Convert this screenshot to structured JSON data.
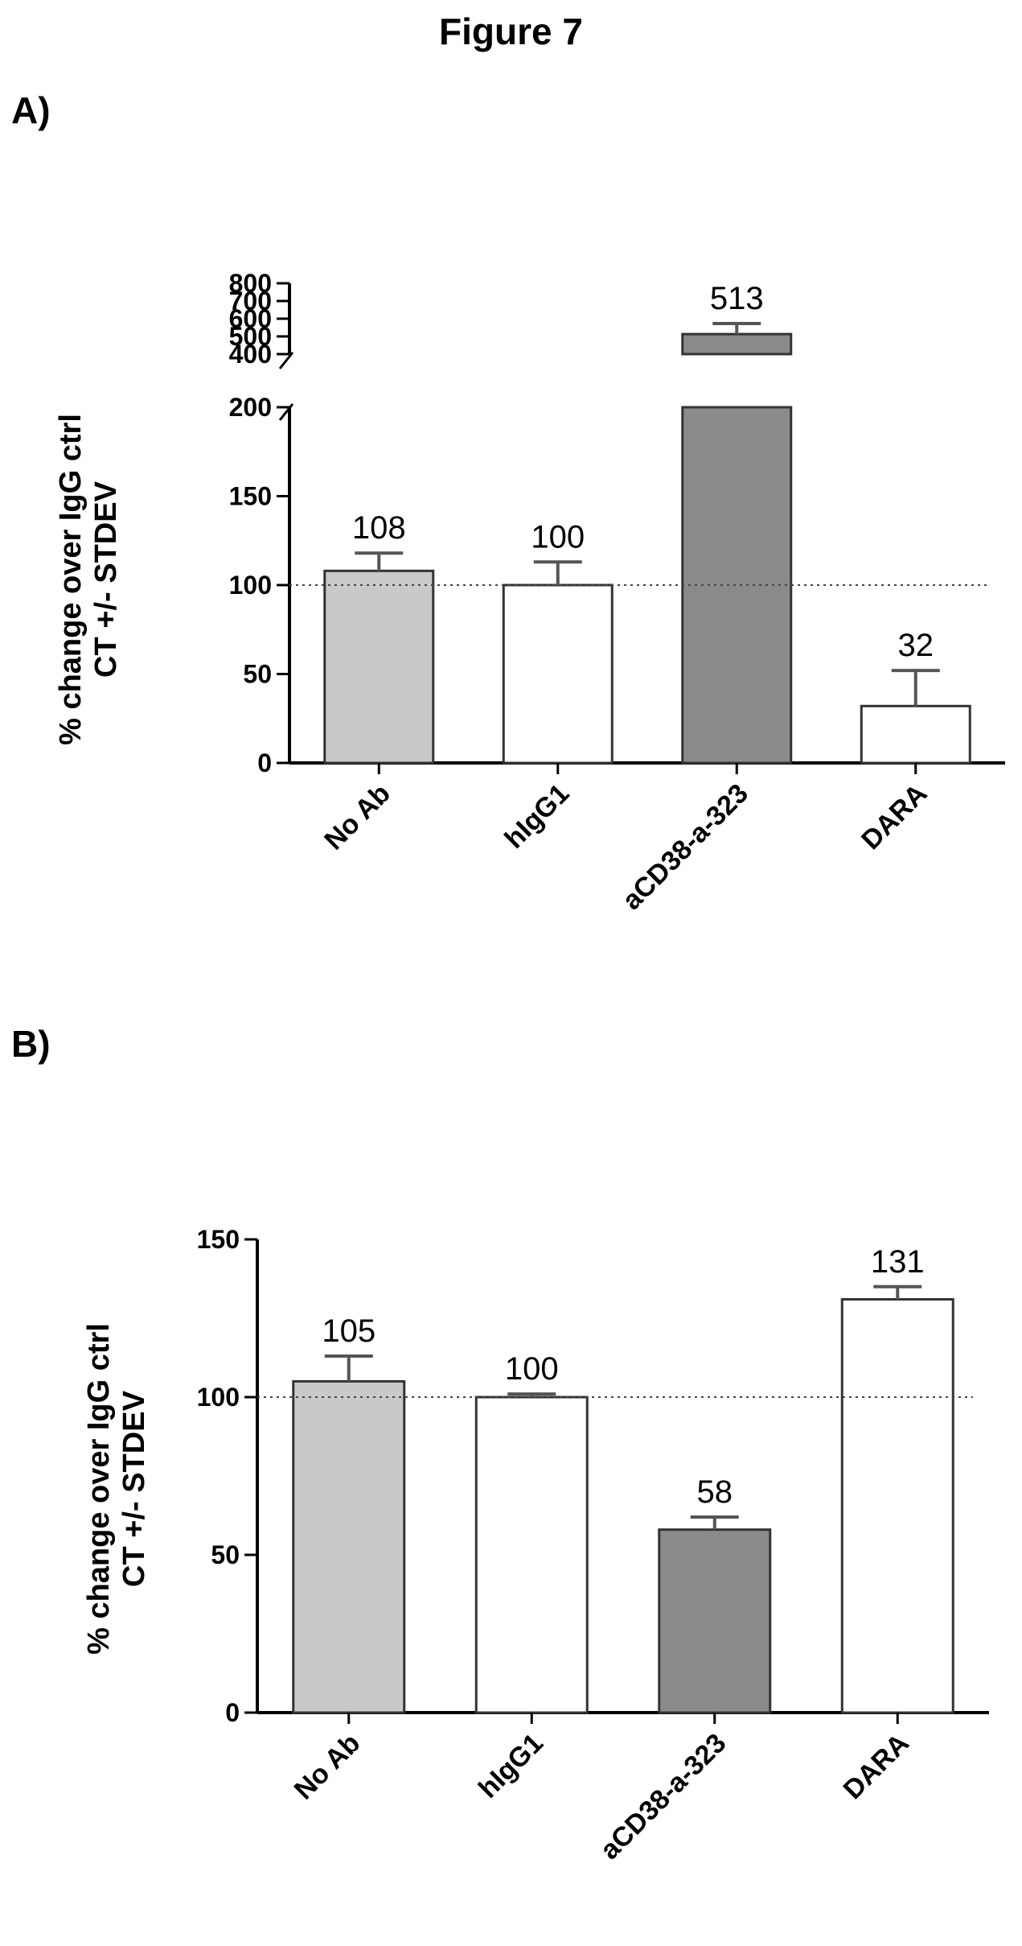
{
  "figure": {
    "title": "Figure 7"
  },
  "panels": [
    {
      "label": "A)"
    },
    {
      "label": "B)"
    }
  ],
  "chart_data": [
    {
      "type": "bar",
      "panel": "A)",
      "categories": [
        "No Ab",
        "hIgG1",
        "aCD38-a-323",
        "DARA"
      ],
      "values": [
        108,
        100,
        513,
        32
      ],
      "errors": [
        10,
        13,
        60,
        20
      ],
      "value_labels": [
        "108",
        "100",
        "513",
        "32"
      ],
      "bar_colors": [
        "#c9c9c9",
        "#ffffff",
        "#8a8a8a",
        "#ffffff"
      ],
      "ylabel_lines": [
        "% change over IgG ctrl",
        "CT +/- STDEV"
      ],
      "xlabel": "",
      "y_axis_break": true,
      "lower_segment": {
        "ylim": [
          0,
          200
        ],
        "ticks": [
          "0",
          "50",
          "100",
          "150",
          "200"
        ]
      },
      "upper_segment": {
        "ylim": [
          400,
          800
        ],
        "ticks": [
          "400",
          "500",
          "600",
          "700",
          "800"
        ]
      },
      "reference_line": 100,
      "reference_line_style": "dotted",
      "grid": false
    },
    {
      "type": "bar",
      "panel": "B)",
      "categories": [
        "No Ab",
        "hIgG1",
        "aCD38-a-323",
        "DARA"
      ],
      "values": [
        105,
        100,
        58,
        131
      ],
      "errors": [
        8,
        1,
        4,
        4
      ],
      "value_labels": [
        "105",
        "100",
        "58",
        "131"
      ],
      "bar_colors": [
        "#c9c9c9",
        "#ffffff",
        "#8a8a8a",
        "#ffffff"
      ],
      "ylabel_lines": [
        "% change over IgG ctrl",
        "CT +/- STDEV"
      ],
      "xlabel": "",
      "ylim": [
        0,
        150
      ],
      "ticks": [
        "0",
        "50",
        "100",
        "150"
      ],
      "reference_line": 100,
      "reference_line_style": "dotted",
      "grid": false
    }
  ]
}
